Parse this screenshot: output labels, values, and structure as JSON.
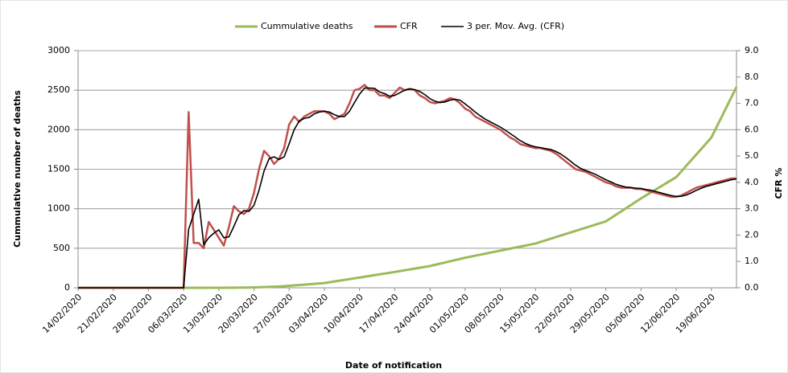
{
  "chart_data": {
    "type": "line",
    "legend_position": "top",
    "xlabel": "Date of notification",
    "ylabel": "Cummulative number of deaths",
    "y2label": "CFR %",
    "grid": true,
    "categories": [
      "14/02/2020",
      null,
      null,
      null,
      null,
      null,
      null,
      "21/02/2020",
      null,
      null,
      null,
      null,
      null,
      null,
      "28/02/2020",
      null,
      null,
      null,
      null,
      null,
      null,
      "06/03/2020",
      null,
      null,
      null,
      null,
      null,
      null,
      "13/03/2020",
      null,
      null,
      null,
      null,
      null,
      null,
      "20/03/2020",
      null,
      null,
      null,
      null,
      null,
      null,
      "27/03/2020",
      null,
      null,
      null,
      null,
      null,
      null,
      "03/04/2020",
      null,
      null,
      null,
      null,
      null,
      null,
      "10/04/2020",
      null,
      null,
      null,
      null,
      null,
      null,
      "17/04/2020",
      null,
      null,
      null,
      null,
      null,
      null,
      "24/04/2020",
      null,
      null,
      null,
      null,
      null,
      null,
      "01/05/2020",
      null,
      null,
      null,
      null,
      null,
      null,
      "08/05/2020",
      null,
      null,
      null,
      null,
      null,
      null,
      "15/05/2020",
      null,
      null,
      null,
      null,
      null,
      null,
      "22/05/2020",
      null,
      null,
      null,
      null,
      null,
      null,
      "29/05/2020",
      null,
      null,
      null,
      null,
      null,
      null,
      "05/06/2020",
      null,
      null,
      null,
      null,
      null,
      null,
      "12/06/2020",
      null,
      null,
      null,
      null,
      null,
      null,
      "19/06/2020",
      null,
      null,
      null,
      null,
      null
    ],
    "ylim": [
      0,
      3000
    ],
    "yticks": [
      0,
      500,
      1000,
      1500,
      2000,
      2500,
      3000
    ],
    "y2lim": [
      0,
      9
    ],
    "y2ticks": [
      {
        "value": 0,
        "label": "0.0"
      },
      {
        "value": 1,
        "label": "1.0"
      },
      {
        "value": 2,
        "label": "2.0"
      },
      {
        "value": 3,
        "label": "3.0"
      },
      {
        "value": 4,
        "label": "4.0"
      },
      {
        "value": 5,
        "label": "5.0"
      },
      {
        "value": 6,
        "label": "6.0"
      },
      {
        "value": 7,
        "label": "7.0"
      },
      {
        "value": 8,
        "label": "8.0"
      },
      {
        "value": 9,
        "label": "9.0"
      }
    ],
    "series": [
      {
        "name": "Cummulative deaths",
        "color": "#9bbb59",
        "values": [
          0,
          0,
          0,
          0,
          0,
          0,
          0,
          0,
          0,
          0,
          0,
          0,
          0,
          0,
          0,
          0,
          0,
          0,
          0,
          0,
          0,
          0,
          0,
          0,
          0,
          0,
          0,
          0,
          0,
          0,
          1,
          1,
          2,
          3,
          4,
          5,
          7,
          9,
          11,
          14,
          17,
          21,
          25,
          30,
          35,
          40,
          45,
          50,
          55,
          60,
          70,
          80,
          90,
          100,
          110,
          120,
          130,
          140,
          150,
          160,
          170,
          180,
          190,
          200,
          211,
          222,
          232,
          243,
          254,
          264,
          275,
          290,
          305,
          320,
          335,
          350,
          365,
          380,
          393,
          406,
          419,
          431,
          444,
          457,
          470,
          483,
          496,
          509,
          521,
          534,
          547,
          560,
          580,
          600,
          620,
          640,
          660,
          680,
          700,
          720,
          740,
          760,
          780,
          800,
          820,
          840,
          881,
          923,
          964,
          1006,
          1047,
          1089,
          1130,
          1169,
          1207,
          1246,
          1284,
          1323,
          1361,
          1400,
          1471,
          1543,
          1614,
          1686,
          1757,
          1829,
          1900,
          2028,
          2156,
          2284,
          2412,
          2540
        ]
      },
      {
        "name": "CFR",
        "color": "#c0504d",
        "axis": "y2",
        "values": [
          0,
          0,
          0,
          0,
          0,
          0,
          0,
          0,
          0,
          0,
          0,
          0,
          0,
          0,
          0,
          0,
          0,
          0,
          0,
          0,
          0,
          0,
          6.67,
          1.7,
          1.7,
          1.5,
          2.5,
          2.2,
          1.9,
          1.6,
          2.3,
          3.1,
          2.9,
          2.8,
          3.0,
          3.6,
          4.5,
          5.2,
          5.0,
          4.7,
          4.9,
          5.3,
          6.2,
          6.5,
          6.3,
          6.5,
          6.6,
          6.7,
          6.7,
          6.7,
          6.6,
          6.4,
          6.5,
          6.6,
          7.0,
          7.5,
          7.55,
          7.7,
          7.5,
          7.5,
          7.3,
          7.3,
          7.2,
          7.4,
          7.6,
          7.5,
          7.55,
          7.5,
          7.3,
          7.2,
          7.05,
          7.0,
          7.05,
          7.1,
          7.2,
          7.15,
          7.0,
          6.8,
          6.7,
          6.5,
          6.4,
          6.3,
          6.2,
          6.1,
          6.0,
          5.85,
          5.7,
          5.6,
          5.45,
          5.4,
          5.35,
          5.3,
          5.3,
          5.25,
          5.2,
          5.1,
          4.95,
          4.8,
          4.65,
          4.5,
          4.45,
          4.4,
          4.3,
          4.2,
          4.1,
          4.0,
          3.95,
          3.85,
          3.8,
          3.8,
          3.8,
          3.75,
          3.75,
          3.7,
          3.65,
          3.6,
          3.55,
          3.5,
          3.45,
          3.45,
          3.5,
          3.6,
          3.7,
          3.8,
          3.85,
          3.9,
          3.95,
          4.0,
          4.05,
          4.1,
          4.15,
          4.15
        ]
      },
      {
        "name": "3 per. Mov. Avg. (CFR)",
        "color": "#000000",
        "axis": "y2",
        "values": [
          0,
          0,
          0,
          0,
          0,
          0,
          0,
          0,
          0,
          0,
          0,
          0,
          0,
          0,
          0,
          0,
          0,
          0,
          0,
          0,
          0,
          0,
          2.22,
          2.79,
          3.36,
          1.63,
          1.9,
          2.07,
          2.2,
          1.9,
          1.93,
          2.33,
          2.77,
          2.93,
          2.9,
          3.13,
          3.7,
          4.43,
          4.9,
          4.97,
          4.87,
          4.97,
          5.47,
          6.0,
          6.33,
          6.43,
          6.47,
          6.6,
          6.67,
          6.7,
          6.67,
          6.57,
          6.5,
          6.5,
          6.7,
          7.03,
          7.35,
          7.58,
          7.58,
          7.57,
          7.43,
          7.37,
          7.27,
          7.3,
          7.4,
          7.5,
          7.55,
          7.52,
          7.45,
          7.33,
          7.18,
          7.08,
          7.03,
          7.05,
          7.12,
          7.15,
          7.12,
          6.98,
          6.83,
          6.67,
          6.53,
          6.4,
          6.3,
          6.2,
          6.1,
          5.98,
          5.85,
          5.72,
          5.58,
          5.48,
          5.4,
          5.35,
          5.32,
          5.28,
          5.25,
          5.18,
          5.08,
          4.95,
          4.8,
          4.65,
          4.53,
          4.45,
          4.38,
          4.3,
          4.2,
          4.1,
          4.02,
          3.93,
          3.87,
          3.82,
          3.8,
          3.78,
          3.77,
          3.73,
          3.7,
          3.65,
          3.6,
          3.55,
          3.5,
          3.47,
          3.47,
          3.52,
          3.6,
          3.7,
          3.78,
          3.85,
          3.9,
          3.95,
          4.0,
          4.05,
          4.1,
          4.13
        ]
      }
    ]
  }
}
